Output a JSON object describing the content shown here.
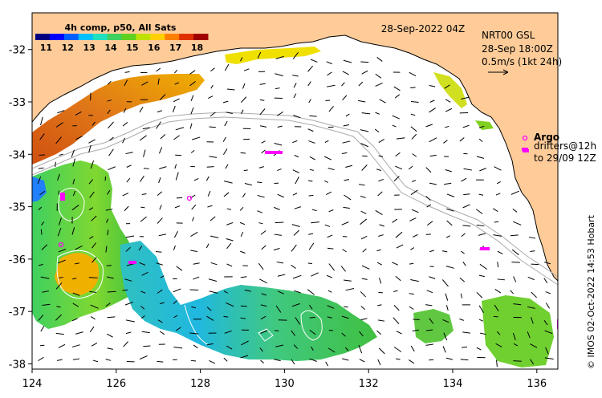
{
  "map": {
    "x_ticks": [
      "124",
      "126",
      "128",
      "130",
      "132",
      "134",
      "136"
    ],
    "y_ticks": [
      "-32",
      "-33",
      "-34",
      "-35",
      "-36",
      "-37",
      "-38"
    ],
    "x_range": [
      124,
      136.5
    ],
    "y_range": [
      -38.1,
      -31.3
    ]
  },
  "colorbar": {
    "title": "4h comp, p50, All Sats",
    "ticks": [
      "11",
      "12",
      "13",
      "14",
      "15",
      "16",
      "17",
      "18"
    ],
    "range": [
      10.5,
      18.5
    ],
    "colors": [
      "#000080",
      "#0000ff",
      "#0060ff",
      "#00c0ff",
      "#20e0c0",
      "#40d060",
      "#60d020",
      "#c0e000",
      "#ffd000",
      "#ff8000",
      "#e03000",
      "#a00000"
    ]
  },
  "annotations": {
    "date": "28-Sep-2022 04Z",
    "model_line1": "NRT00 GSL",
    "model_line2": "28-Sep 18:00Z",
    "model_line3": "0.5m/s (1kt 24h)",
    "argo_label": "Argo",
    "drifters_line1": "drifters@12h",
    "drifters_line2": "to 29/09 12Z",
    "credit": "© IMOS 02-Oct-2022 14:53 Hobart"
  },
  "colors": {
    "land": "#ffcc99",
    "contour": "#aaaaaa",
    "argo": "#ff00ff"
  }
}
